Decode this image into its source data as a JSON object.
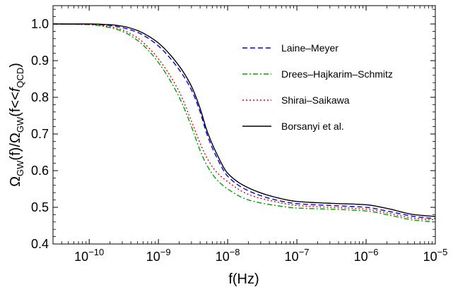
{
  "chart_data": {
    "type": "line",
    "xlabel": "f(Hz)",
    "ylabel": "Ω_GW(f)/Ω_GW(f<<f_QCD)",
    "xscale": "log",
    "xlim": [
      3e-11,
      1e-05
    ],
    "ylim": [
      0.4,
      1.05
    ],
    "grid": false,
    "legend_position": "right-center",
    "x_ticks": [
      {
        "value": 1e-10,
        "base": "10",
        "exp": "−10"
      },
      {
        "value": 1e-09,
        "base": "10",
        "exp": "−9"
      },
      {
        "value": 1e-08,
        "base": "10",
        "exp": "−8"
      },
      {
        "value": 1e-07,
        "base": "10",
        "exp": "−7"
      },
      {
        "value": 1e-06,
        "base": "10",
        "exp": "−6"
      },
      {
        "value": 1e-05,
        "base": "10",
        "exp": "−5"
      }
    ],
    "y_ticks": [
      "0.4",
      "0.5",
      "0.6",
      "0.7",
      "0.8",
      "0.9",
      "1.0"
    ],
    "series": [
      {
        "name": "Laine–Meyer",
        "color": "#0000ee",
        "dash": "dashed",
        "x": [
          3e-11,
          1e-10,
          2e-10,
          3e-10,
          5e-10,
          7e-10,
          1e-09,
          2e-09,
          3e-09,
          4e-09,
          5e-09,
          7e-09,
          1e-08,
          2e-08,
          5e-08,
          1e-07,
          3e-07,
          1e-06,
          2e-06,
          5e-06,
          1e-05
        ],
        "y": [
          1.0,
          0.999,
          0.996,
          0.99,
          0.977,
          0.962,
          0.94,
          0.875,
          0.82,
          0.76,
          0.7,
          0.635,
          0.585,
          0.545,
          0.52,
          0.51,
          0.505,
          0.5,
          0.49,
          0.475,
          0.469
        ]
      },
      {
        "name": "Drees–Hajkarim–Schmitz",
        "color": "#00a000",
        "dash": "dashdot",
        "x": [
          3e-11,
          1e-10,
          2e-10,
          3e-10,
          5e-10,
          7e-10,
          1e-09,
          2e-09,
          3e-09,
          4e-09,
          5e-09,
          7e-09,
          1e-08,
          2e-08,
          5e-08,
          1e-07,
          3e-07,
          1e-06,
          2e-06,
          5e-06,
          1e-05
        ],
        "y": [
          1.0,
          0.998,
          0.99,
          0.98,
          0.955,
          0.93,
          0.895,
          0.8,
          0.72,
          0.655,
          0.615,
          0.575,
          0.55,
          0.52,
          0.505,
          0.498,
          0.495,
          0.49,
          0.48,
          0.465,
          0.46
        ]
      },
      {
        "name": "Shirai–Saikawa",
        "color": "#ee0000",
        "dash": "dotted",
        "x": [
          3e-11,
          1e-10,
          2e-10,
          3e-10,
          5e-10,
          7e-10,
          1e-09,
          2e-09,
          3e-09,
          4e-09,
          5e-09,
          7e-09,
          1e-08,
          2e-08,
          5e-08,
          1e-07,
          3e-07,
          1e-06,
          2e-06,
          5e-06,
          1e-05
        ],
        "y": [
          1.0,
          0.999,
          0.993,
          0.984,
          0.962,
          0.938,
          0.905,
          0.815,
          0.735,
          0.675,
          0.635,
          0.595,
          0.57,
          0.535,
          0.515,
          0.505,
          0.5,
          0.495,
          0.485,
          0.47,
          0.466
        ]
      },
      {
        "name": "Borsanyi et al.",
        "color": "#000000",
        "dash": "solid",
        "x": [
          3e-11,
          1e-10,
          2e-10,
          3e-10,
          5e-10,
          7e-10,
          1e-09,
          2e-09,
          3e-09,
          4e-09,
          5e-09,
          7e-09,
          1e-08,
          2e-08,
          5e-08,
          1e-07,
          3e-07,
          1e-06,
          2e-06,
          5e-06,
          1e-05
        ],
        "y": [
          1.0,
          1.0,
          0.998,
          0.994,
          0.982,
          0.968,
          0.948,
          0.885,
          0.83,
          0.77,
          0.71,
          0.645,
          0.593,
          0.553,
          0.527,
          0.516,
          0.511,
          0.507,
          0.497,
          0.48,
          0.475
        ]
      }
    ]
  }
}
